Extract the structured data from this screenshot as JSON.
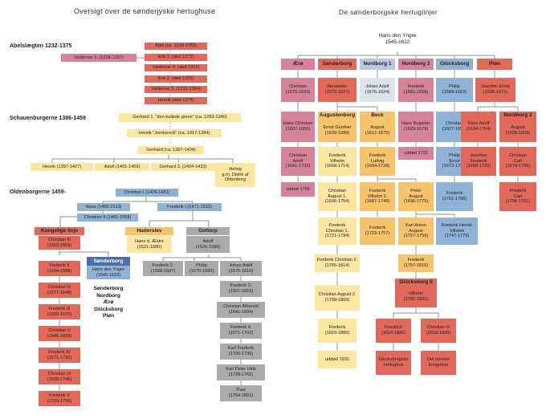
{
  "titles": {
    "left": "Oversigt over de sønderjyske hertughuse",
    "right": "De sønderborgske hertuglinjer",
    "ancestor": "Hans den Yngre\n1545-1622"
  },
  "sections": {
    "abel": "Abelslægten 1232-1375",
    "schauenburg": "Schauenburgerne 1386-1459",
    "oldenburg": "Oldenborgerne 1459-"
  },
  "labels": {
    "sonderborg_lines": "Sønderborg\nNordborg\nÆrø\nGlücksborg\nPløn"
  },
  "colors": {
    "red": "#e2695a",
    "pink": "#d6829a",
    "blue": "#8eb3d6",
    "gray": "#aaaaaa",
    "yellow": "#fde6a0",
    "orange": "#f7c36b",
    "brand_red": "#c0504d"
  },
  "nodes": {
    "abel": "Abel (ca. 1218-1252)",
    "erik1": "Erik 1. (død 1272)",
    "valdemar3": "Valdemar 3. (1238-1257)",
    "valdemar4": "Valdemar 4. (død 1312)",
    "erik2": "Erik 2. (død 1325)",
    "valdemar5": "Valdemar 5. (1315-1364)",
    "henrik": "Henrik (død 1375)",
    "gerhard1": "Gerhard 1. \"den kullede greve\" (ca. 1293-1340)",
    "henrik_jern": "Henrik \"Jernhenrik\" (ca. 1317-1384)",
    "gerhard": "Gerhard (ca. 1367-1404)",
    "henrik_s": "Henrik (1397-1427)",
    "adolf_s": "Adolf (1401-1459)",
    "gerhard3": "Gerhard 3. (1404-1433)",
    "helvig": "Helvig\ng.m. Didrik af\nOldenborg",
    "christian1": "Christian I (1426-1481)",
    "hans": "Hans (1455-1513)",
    "frederik1": "Frederik I (1471-1533)",
    "christian2": "Christian II (1481-1559)",
    "kongelige": "Kongelige linje",
    "haderslev": "Haderslev",
    "gottorp": "Gottorp",
    "christian3": "Christian III\n(1503-1559)",
    "hans_aeldre": "Hans d. Ældre\n(1521-1580)",
    "adolf_g": "Adolf\n(1526-1586)",
    "frederik2": "Frederik II\n(1534-1588)",
    "sonderborg_hd": "Sønderborg",
    "hans_yngre": "Hans den Yngre\n(1545-1622)",
    "frederik2g": "Frederik 2.\n(1568-1587)",
    "philip_g": "Philip\n(1570-1590)",
    "johan_adolf_g": "Johan Adolf\n(1575-1616)",
    "christian4": "Christian IV\n(1577-1648)",
    "frederik3g": "Frederik 3.\n(1597-1659)",
    "frederik3": "Frederik III\n(1609-1670)",
    "christian_albrecht": "Christian Albrecht\n(1641-1694)",
    "christian5": "Christian V\n(1646-1699)",
    "frederik4g": "Frederik 4.\n(1671-1702)",
    "frederik4": "Frederik IV\n(1671-1730)",
    "karl_frederik": "Karl Frederik\n(1700-1739)",
    "christian6": "Christian VI\n(1699-1746)",
    "karl_peter": "Karl Peter Ulrik\n(1728-1762)",
    "frederik5": "Frederik V\n(1723-1766)",
    "paul": "Paul\n(1754-1801)",
    "r_aero": "Ærø",
    "r_sonderborg": "Sønderborg",
    "r_nordborg1": "Nordborg 1",
    "r_nordborg2": "Nordborg 2",
    "r_glucksborg": "Glücksborg",
    "r_plon": "Pløn",
    "r_christian_a": "Christian\n(1570-1633)",
    "r_alexander": "Alexander\n(1573-1627)",
    "r_johan_adolf": "Johan Adolf\n(1576-1624)",
    "r_frederik_n2": "Frederik\n(1581-1658)",
    "r_philip": "Philip\n(1584-1663)",
    "r_joachim_ernst": "Joachim Ernst\n(1595-1671)",
    "r_hans_christian": "Hans Christian\n(1607-1653)",
    "r_augustenborg": "Augustenborg",
    "r_ernst_gunther": "Ernst Günther\n(1609-1689)",
    "r_beck": "Beck",
    "r_august_beck": "August\n(1612-1675)",
    "r_hans_bugislav": "Hans Bugislav\n(1629-1679)",
    "r_christian_g": "Christian\n(1627-1698)",
    "r_hans_adolf": "Hans Adolf\n(1634-1704)",
    "r_nordborg3": "Nordborg 3",
    "r_august_n3": "August\n(1635-1699)",
    "r_christian_adolf": "Christian\nAdolf\n(1641-1702)",
    "r_frederik_vilhelm": "Frederik\nVilhelm\n(1668-1714)",
    "r_frederik_ludvig": "Frederik\nLudvig\n(1654-1728)",
    "r_uddod_1722": "uddød 1722",
    "r_philip_ernst": "Philip\nErnst\n(1673-1729)",
    "r_joachim_frederik": "Joachim\nFrederik\n(1668-1722)",
    "r_christian_carl": "Christian\nCarl\n(1674-1706)",
    "r_uddod_1709": "uddød 1709",
    "r_christian_august1": "Christian\nAugust 1.\n(1696-1754)",
    "r_frederik_vilhelm2": "Frederik\nVilhelm 2.\n(1687-1749)",
    "r_peter_august": "Peter\nAugust\n(1696-1775)",
    "r_frederik_g": "Frederik\n(1701-1766)",
    "r_frederik_carl": "Frederik\nCarl\n(1706-1761)",
    "r_frederik_christian1": "Frederik\nChristian 1.\n(1721-1794)",
    "r_frederik_beck": "Frederik\n(1723-1757)",
    "r_karl_anton": "Karl Anton\nAugust\n(1727-1759)",
    "r_frederik_henrik": "Frederik Henrik\nVilhelm\n(1747-1779)",
    "r_frederik_christian2": "Frederik Christian 2.\n(1765-1814)",
    "r_frederik_1757": "Frederik\n(1757-1816)",
    "r_christian_august2": "Christian August 2.\n(1798-1869)",
    "r_glucksborg2": "Glücksborg II",
    "r_vilhelm": "Vilhelm\n(1785-1831)",
    "r_frederik_1829": "Frederik\n(1829-1880)",
    "r_friedrich": "Friedrich\n(1814-1885)",
    "r_christian9": "Christian IX\n(1818-1906)",
    "r_uddod_1931": "uddød 1931",
    "r_glucksborgske": "Glücksborgske\nhertughus",
    "r_kongehus": "Det danske\nkongehus"
  }
}
